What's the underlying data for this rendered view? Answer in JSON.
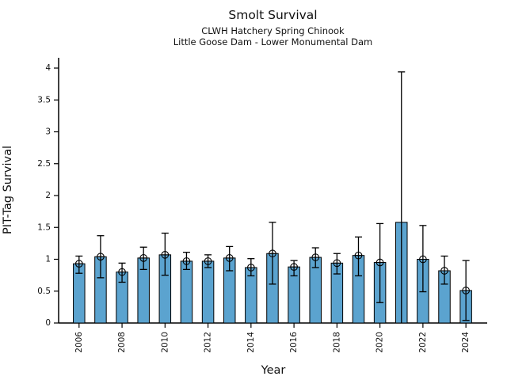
{
  "header": {
    "title": "Smolt Survival",
    "subtitle1": "CLWH Hatchery Spring Chinook",
    "subtitle2": "Little Goose Dam - Lower Monumental Dam"
  },
  "chart_data": {
    "type": "bar",
    "title": "Smolt Survival",
    "subtitle": [
      "CLWH Hatchery Spring Chinook",
      "Little Goose Dam - Lower Monumental Dam"
    ],
    "xlabel": "Year",
    "ylabel": "PIT-Tag Survival",
    "ylim": [
      0,
      4
    ],
    "ytick_step": 0.5,
    "grid": false,
    "legend": "none",
    "bar_color": "#5ba3cf",
    "bar_edge_color": "#000000",
    "error_color": "#000000",
    "categories": [
      2006,
      2007,
      2008,
      2009,
      2010,
      2011,
      2012,
      2013,
      2014,
      2015,
      2016,
      2017,
      2018,
      2019,
      2020,
      2021,
      2022,
      2023,
      2024
    ],
    "xtick_labels": [
      "2006",
      "2008",
      "2010",
      "2012",
      "2014",
      "2016",
      "2018",
      "2020",
      "2022",
      "2024"
    ],
    "values": [
      0.93,
      1.04,
      0.8,
      1.02,
      1.07,
      0.97,
      0.97,
      1.02,
      0.87,
      1.09,
      0.88,
      1.03,
      0.94,
      1.06,
      0.95,
      1.58,
      1.0,
      0.82,
      0.51
    ],
    "err_low": [
      0.78,
      0.71,
      0.64,
      0.84,
      0.75,
      0.84,
      0.87,
      0.82,
      0.74,
      0.61,
      0.74,
      0.87,
      0.77,
      0.74,
      0.32,
      0.0,
      0.49,
      0.61,
      0.04
    ],
    "err_high": [
      1.05,
      1.37,
      0.94,
      1.19,
      1.41,
      1.11,
      1.07,
      1.2,
      1.01,
      1.58,
      0.98,
      1.18,
      1.09,
      1.35,
      1.56,
      3.94,
      1.53,
      1.05,
      0.98
    ],
    "marker_visible": [
      true,
      true,
      true,
      true,
      true,
      true,
      true,
      true,
      true,
      true,
      true,
      true,
      true,
      true,
      true,
      false,
      true,
      true,
      true
    ]
  }
}
